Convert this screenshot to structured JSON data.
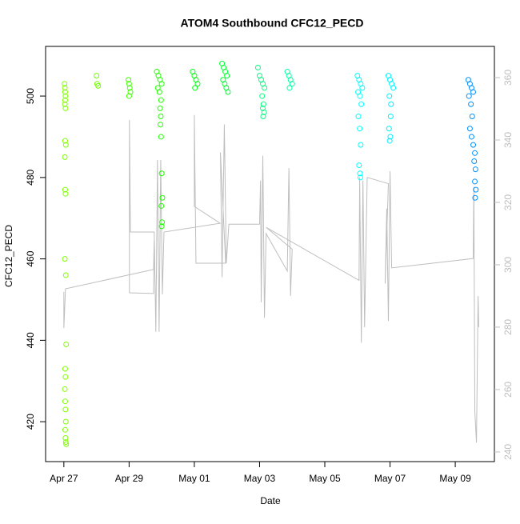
{
  "chart_data": {
    "type": "scatter",
    "title": "ATOM4 Southbound CFC12_PECD",
    "xlabel": "Date",
    "ylabel": "CFC12_PECD",
    "xlim": [
      -0.56,
      13.2
    ],
    "xticks": [
      {
        "value": 0,
        "label": "Apr 27"
      },
      {
        "value": 2,
        "label": "Apr 29"
      },
      {
        "value": 4,
        "label": "May 01"
      },
      {
        "value": 6,
        "label": "May 03"
      },
      {
        "value": 8,
        "label": "May 05"
      },
      {
        "value": 10,
        "label": "May 07"
      },
      {
        "value": 12,
        "label": "May 09"
      }
    ],
    "ylim": [
      410.2,
      512.2
    ],
    "yticks": [
      420,
      440,
      460,
      480,
      500
    ],
    "y2lim": [
      236.9,
      370
    ],
    "y2ticks": [
      240,
      260,
      280,
      300,
      320,
      340,
      360
    ],
    "y2color": "#bebebe",
    "series": [
      {
        "type": "line",
        "axis": "y2",
        "color": "#bebebe",
        "x": [
          0,
          0,
          0.05,
          2.75,
          2.77,
          2.75,
          2.01,
          2.01,
          2.04,
          2.77,
          2.82,
          2.87,
          2.92,
          2.97,
          3.02,
          3.07,
          4.79,
          4.0,
          4.0,
          4.05,
          4.96,
          4.8,
          4.85,
          4.92,
          4.98,
          5.06,
          6.0,
          6.03,
          6.05,
          6.1,
          6.15,
          6.2,
          6.85,
          6.9,
          6.95,
          7.0,
          6.2,
          9.05,
          9.07,
          9.12,
          9.17,
          9.22,
          9.3,
          9.95,
          9.85,
          9.9,
          9.95,
          10.0,
          10.05,
          12.55,
          12.57,
          12.6,
          12.65,
          12.7,
          12.72
        ],
        "values": [
          291.3,
          279.7,
          292.3,
          298.5,
          307.9,
          290.8,
          291,
          346.4,
          310.5,
          310.5,
          278.5,
          333.6,
          278.5,
          333.6,
          290.5,
          310.5,
          313.3,
          318.7,
          348,
          300.5,
          300.5,
          336,
          296,
          345,
          300.5,
          313,
          313,
          327,
          288,
          335,
          283,
          310,
          298,
          331,
          290,
          305,
          312,
          295,
          328,
          275,
          327,
          280,
          328,
          326,
          294,
          318,
          282,
          330,
          299,
          302,
          325,
          253,
          243,
          290,
          280
        ]
      },
      {
        "color": "#80ff00",
        "x": [
          0.02,
          0.03,
          0.04,
          0.05,
          0.04,
          0.03,
          0.05,
          0.04,
          0.06,
          0.03,
          0.04,
          0.05,
          0.03,
          0.06,
          0.07,
          0.04,
          0.05,
          0.03,
          0.04,
          0.05,
          0.06,
          0.04,
          0.05,
          0.06,
          0.07
        ],
        "values": [
          503,
          502,
          501,
          500,
          499,
          498,
          497,
          489,
          488,
          485,
          477,
          476,
          460,
          456,
          439,
          433,
          431,
          428,
          425,
          423,
          420,
          418,
          416,
          415,
          414.5
        ]
      },
      {
        "color": "#70ff00",
        "x": [
          1.0,
          1.02,
          1.05
        ],
        "values": [
          505,
          503,
          502.5
        ]
      },
      {
        "color": "#40ff00",
        "x": [
          1.98,
          2.0,
          2.02,
          2.04,
          2.0
        ],
        "values": [
          504,
          503,
          502,
          501,
          500
        ]
      },
      {
        "color": "#20ff00",
        "x": [
          2.85,
          2.9,
          2.95,
          3.0,
          2.88,
          2.93,
          2.98,
          2.95,
          2.97,
          2.96,
          2.98,
          3.0,
          3.02,
          2.99,
          3.01,
          3.0
        ],
        "values": [
          506,
          505,
          504,
          503,
          502,
          501,
          499,
          497,
          495,
          493,
          490,
          481,
          475,
          473,
          469,
          468
        ]
      },
      {
        "color": "#00ff10",
        "x": [
          3.95,
          4.0,
          4.05,
          4.1,
          4.02
        ],
        "values": [
          506,
          505,
          504,
          503,
          502
        ]
      },
      {
        "color": "#00ff30",
        "x": [
          4.85,
          4.9,
          4.95,
          5.0,
          4.88,
          4.93,
          4.98,
          5.03
        ],
        "values": [
          508,
          507,
          506,
          505,
          504,
          503,
          502,
          501
        ]
      },
      {
        "color": "#00ff80",
        "x": [
          5.95,
          6.0,
          6.05,
          6.1,
          6.15,
          6.08,
          6.12,
          6.1,
          6.14,
          6.11
        ],
        "values": [
          507,
          505,
          504,
          503,
          502,
          500,
          498,
          497,
          496,
          495
        ]
      },
      {
        "color": "#00ffa0",
        "x": [
          6.85,
          6.9,
          6.95,
          7.0,
          6.92
        ],
        "values": [
          506,
          505,
          504,
          503,
          502
        ]
      },
      {
        "color": "#00ffff",
        "x": [
          9.0,
          9.05,
          9.1,
          9.15,
          9.02,
          9.08,
          9.12,
          9.03,
          9.07,
          9.1,
          9.05,
          9.08,
          9.09
        ],
        "values": [
          505,
          504,
          503,
          502,
          501,
          500,
          498,
          495,
          492,
          488,
          483,
          481,
          480
        ]
      },
      {
        "color": "#00f0ff",
        "x": [
          9.95,
          10.0,
          10.05,
          10.1,
          9.98,
          10.03,
          10.02,
          9.97,
          10.01,
          9.99
        ],
        "values": [
          505,
          504,
          503,
          502,
          500,
          498,
          495,
          492,
          490,
          489
        ]
      },
      {
        "color": "#0090ff",
        "x": [
          12.4,
          12.45,
          12.5,
          12.55,
          12.42,
          12.48,
          12.52,
          12.45,
          12.5,
          12.55,
          12.6,
          12.58,
          12.62,
          12.6,
          12.63,
          12.61
        ],
        "values": [
          504,
          503,
          502,
          501,
          500,
          498,
          495,
          492,
          490,
          488,
          486,
          484,
          482,
          479,
          477,
          475
        ]
      }
    ]
  }
}
